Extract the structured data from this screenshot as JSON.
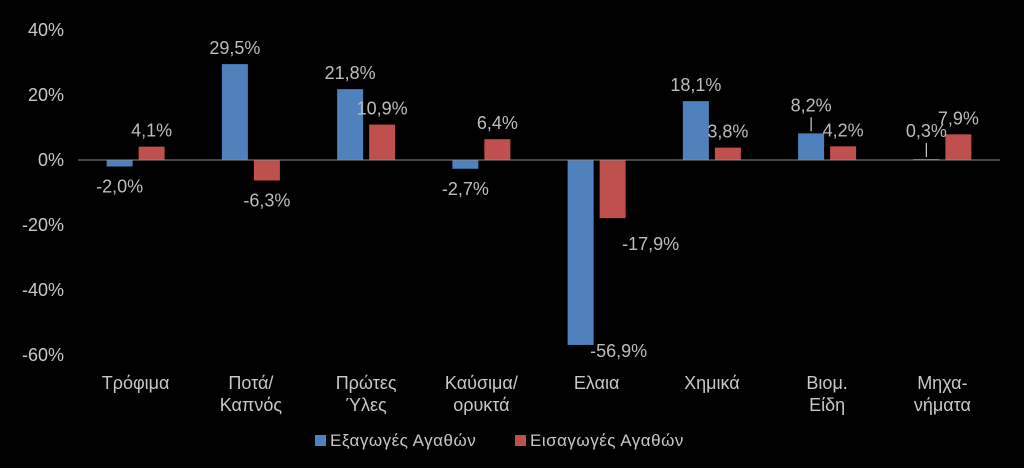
{
  "chart_data": {
    "type": "bar",
    "categories": [
      [
        "Τρόφιμα"
      ],
      [
        "Ποτά/",
        "Καπνός"
      ],
      [
        "Πρώτες",
        "Ύλες"
      ],
      [
        "Καύσιμα/",
        "ορυκτά"
      ],
      [
        "Ελαια"
      ],
      [
        "Χημικά"
      ],
      [
        "Βιομ.",
        "Είδη"
      ],
      [
        "Μηχα-",
        "νήματα"
      ]
    ],
    "series": [
      {
        "name": "Εξαγωγές Αγαθών",
        "color": "#4f81bd",
        "values": [
          -2.0,
          29.5,
          21.8,
          -2.7,
          -56.9,
          18.1,
          8.2,
          0.3
        ],
        "labels": [
          "-2,0%",
          "29,5%",
          "21,8%",
          "-2,7%",
          "-56,9%",
          "18,1%",
          "8,2%",
          "0,3%"
        ]
      },
      {
        "name": "Εισαγωγές Αγαθών",
        "color": "#c0504d",
        "values": [
          4.1,
          -6.3,
          10.9,
          6.4,
          -17.9,
          3.8,
          4.2,
          7.9
        ],
        "labels": [
          "4,1%",
          "-6,3%",
          "10,9%",
          "6,4%",
          "-17,9%",
          "3,8%",
          "4,2%",
          "7,9%"
        ]
      }
    ],
    "ylim": [
      -60,
      40
    ],
    "yticks": [
      -60,
      -40,
      -20,
      0,
      20,
      40
    ],
    "ytick_labels": [
      "-60%",
      "-40%",
      "-20%",
      "0%",
      "20%",
      "40%"
    ],
    "legend_position": "bottom",
    "grid": false
  }
}
